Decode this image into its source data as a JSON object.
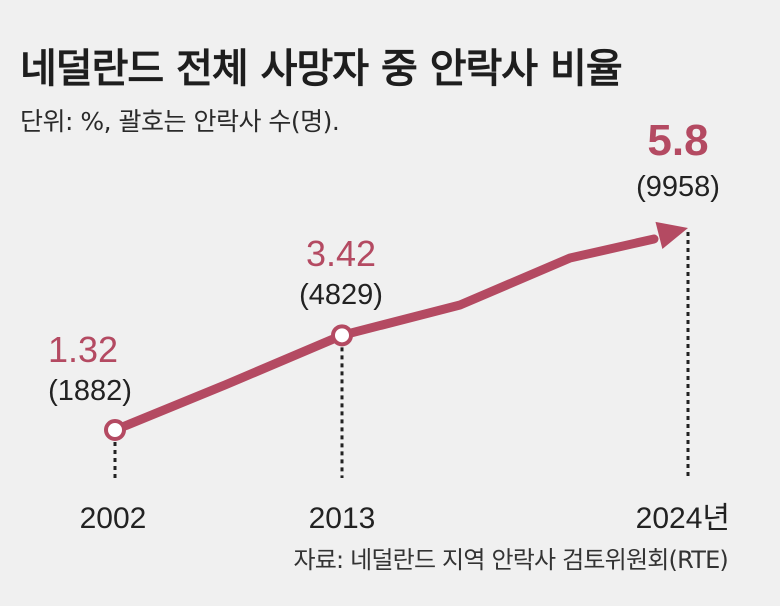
{
  "header": {
    "title": "네덜란드 전체 사망자 중 안락사 비율",
    "subtitle": "단위: %, 괄호는 안락사 수(명)."
  },
  "source": "자료: 네덜란드 지역 안락사 검토위원회(RTE)",
  "colors": {
    "accent": "#b44a62",
    "text": "#222222",
    "background": "#f0f0f0"
  },
  "chart_data": {
    "type": "line",
    "title": "네덜란드 전체 사망자 중 안락사 비율",
    "subtitle": "단위: %, 괄호는 안락사 수(명).",
    "xlabel": "",
    "ylabel": "%",
    "categories": [
      "2002",
      "2013",
      "2024년"
    ],
    "series": [
      {
        "name": "안락사 비율",
        "values": [
          1.32,
          3.42,
          5.8
        ]
      }
    ],
    "value_labels": [
      "1.32",
      "3.42",
      "5.8"
    ],
    "count_labels": [
      "(1882)",
      "(4829)",
      "(9958)"
    ],
    "counts": [
      1882,
      4829,
      9958
    ],
    "grid": false,
    "legend": "none"
  }
}
